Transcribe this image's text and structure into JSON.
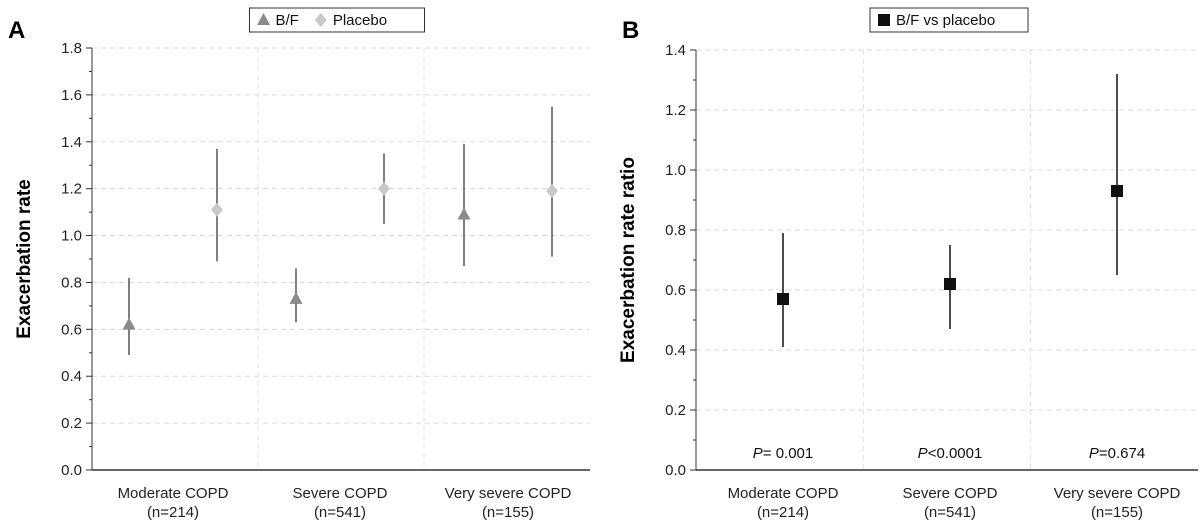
{
  "chart_data": [
    {
      "panel_label": "A",
      "type": "scatter",
      "ylabel": "Exacerbation rate",
      "ylim": [
        0,
        1.8
      ],
      "yticks": [
        "0.0",
        "0.2",
        "0.4",
        "0.6",
        "0.8",
        "1.0",
        "1.2",
        "1.4",
        "1.6",
        "1.8"
      ],
      "categories": [
        {
          "line1": "Moderate COPD",
          "line2": "(n=214)"
        },
        {
          "line1": "Severe COPD",
          "line2": "(n=541)"
        },
        {
          "line1": "Very severe COPD",
          "line2": "(n=155)"
        }
      ],
      "legend_position": "top-center",
      "grid": true,
      "series": [
        {
          "name": "B/F",
          "marker": "triangle",
          "color": "#8a8a8a",
          "values": [
            0.62,
            0.73,
            1.09
          ],
          "lower": [
            0.49,
            0.63,
            0.87
          ],
          "upper": [
            0.82,
            0.86,
            1.39
          ]
        },
        {
          "name": "Placebo",
          "marker": "diamond",
          "color": "#c8c8c8",
          "values": [
            1.11,
            1.2,
            1.19
          ],
          "lower": [
            0.89,
            1.05,
            0.91
          ],
          "upper": [
            1.37,
            1.35,
            1.55
          ]
        }
      ]
    },
    {
      "panel_label": "B",
      "type": "scatter",
      "ylabel": "Exacerbation rate ratio",
      "ylim": [
        0,
        1.4
      ],
      "yticks": [
        "0.0",
        "0.2",
        "0.4",
        "0.6",
        "0.8",
        "1.0",
        "1.2",
        "1.4"
      ],
      "categories": [
        {
          "line1": "Moderate COPD",
          "line2": "(n=214)"
        },
        {
          "line1": "Severe COPD",
          "line2": "(n=541)"
        },
        {
          "line1": "Very severe COPD",
          "line2": "(n=155)"
        }
      ],
      "legend_position": "top-center",
      "grid": true,
      "series": [
        {
          "name": "B/F vs placebo",
          "marker": "square",
          "color": "#111111",
          "values": [
            0.57,
            0.62,
            0.93
          ],
          "lower": [
            0.41,
            0.47,
            0.65
          ],
          "upper": [
            0.79,
            0.75,
            1.32
          ]
        }
      ],
      "annotations": [
        {
          "italic": "P",
          "rest": "= 0.001"
        },
        {
          "italic": "P",
          "rest": "<0.0001"
        },
        {
          "italic": "P",
          "rest": "=0.674"
        }
      ]
    }
  ]
}
